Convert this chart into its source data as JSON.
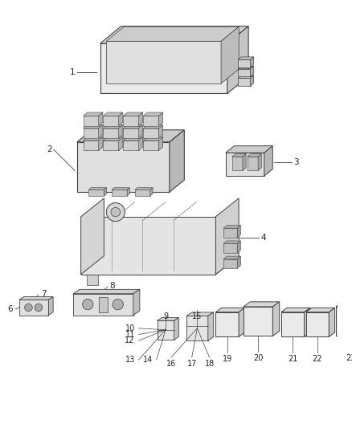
{
  "bg_color": "#ffffff",
  "fig_width": 4.38,
  "fig_height": 5.33,
  "dpi": 100,
  "line_color": "#404040",
  "light_gray": "#cccccc",
  "mid_gray": "#999999",
  "dark_gray": "#555555",
  "face_light": "#f0f0f0",
  "face_mid": "#e0e0e0",
  "face_dark": "#d0d0d0",
  "text_color": "#222222",
  "font_size": 7.5
}
